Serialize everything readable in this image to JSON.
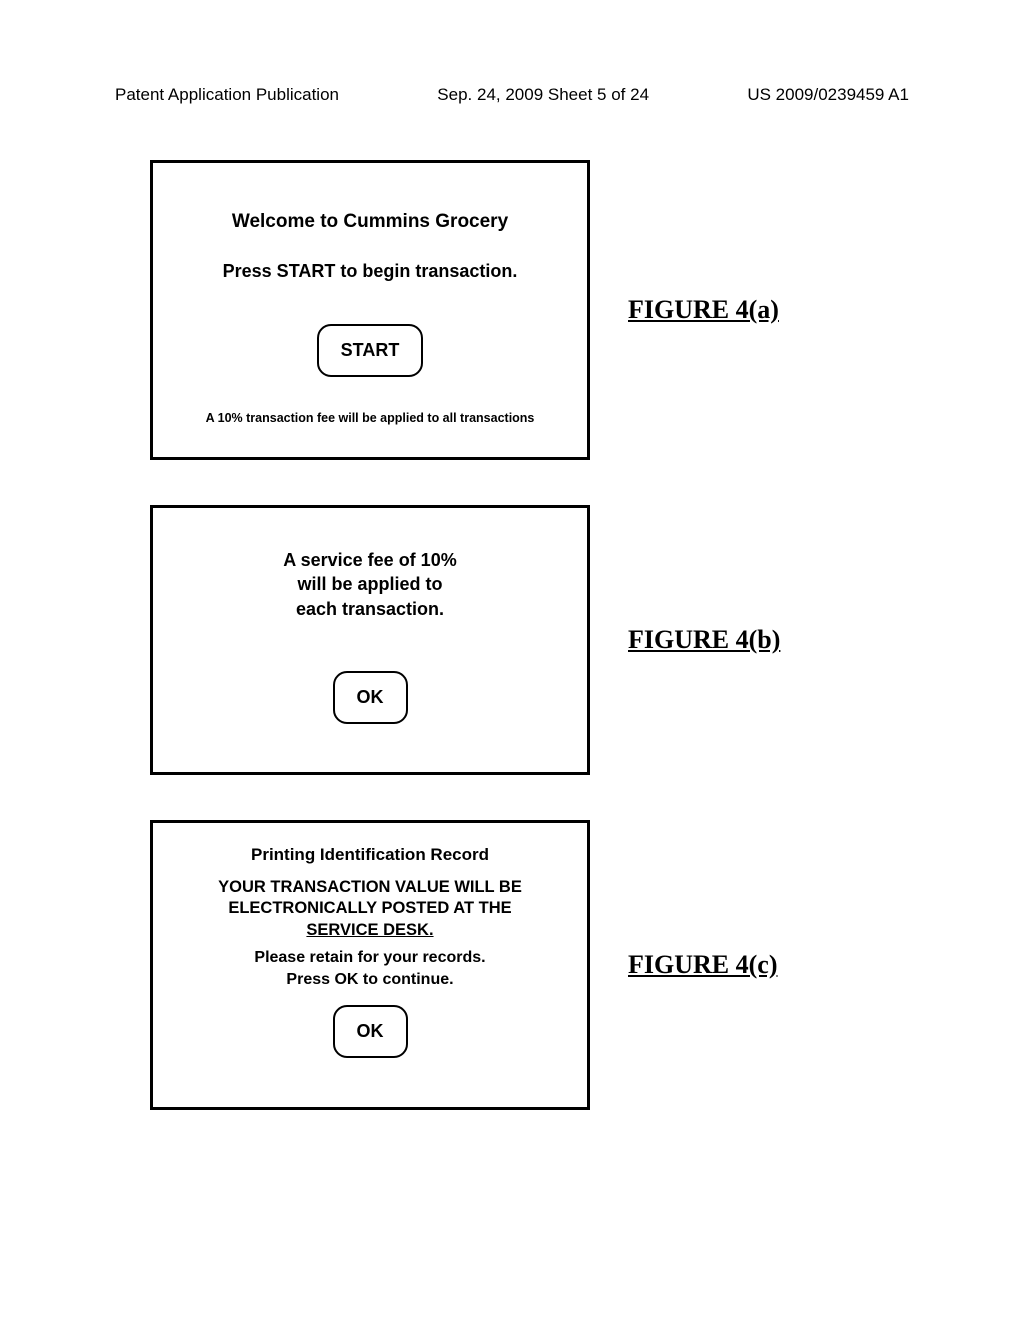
{
  "header": {
    "left": "Patent Application Publication",
    "center": "Sep. 24, 2009  Sheet 5 of 24",
    "right": "US 2009/0239459 A1"
  },
  "figures": {
    "a": {
      "label": "FIGURE 4(a)",
      "title": "Welcome to Cummins Grocery",
      "subtitle": "Press START to begin transaction.",
      "button": "START",
      "footer": "A 10% transaction fee will be applied to all transactions"
    },
    "b": {
      "label": "FIGURE 4(b)",
      "line1": "A service fee of 10%",
      "line2": "will be applied to",
      "line3": "each transaction.",
      "button": "OK"
    },
    "c": {
      "label": "FIGURE 4(c)",
      "heading": "Printing Identification Record",
      "bold1a": "YOUR TRANSACTION VALUE WILL BE",
      "bold1b": "ELECTRONICALLY POSTED AT THE",
      "bold1c": "SERVICE DESK.",
      "line2a": "Please retain for your records.",
      "line2b": "Press OK to continue.",
      "button": "OK"
    }
  }
}
